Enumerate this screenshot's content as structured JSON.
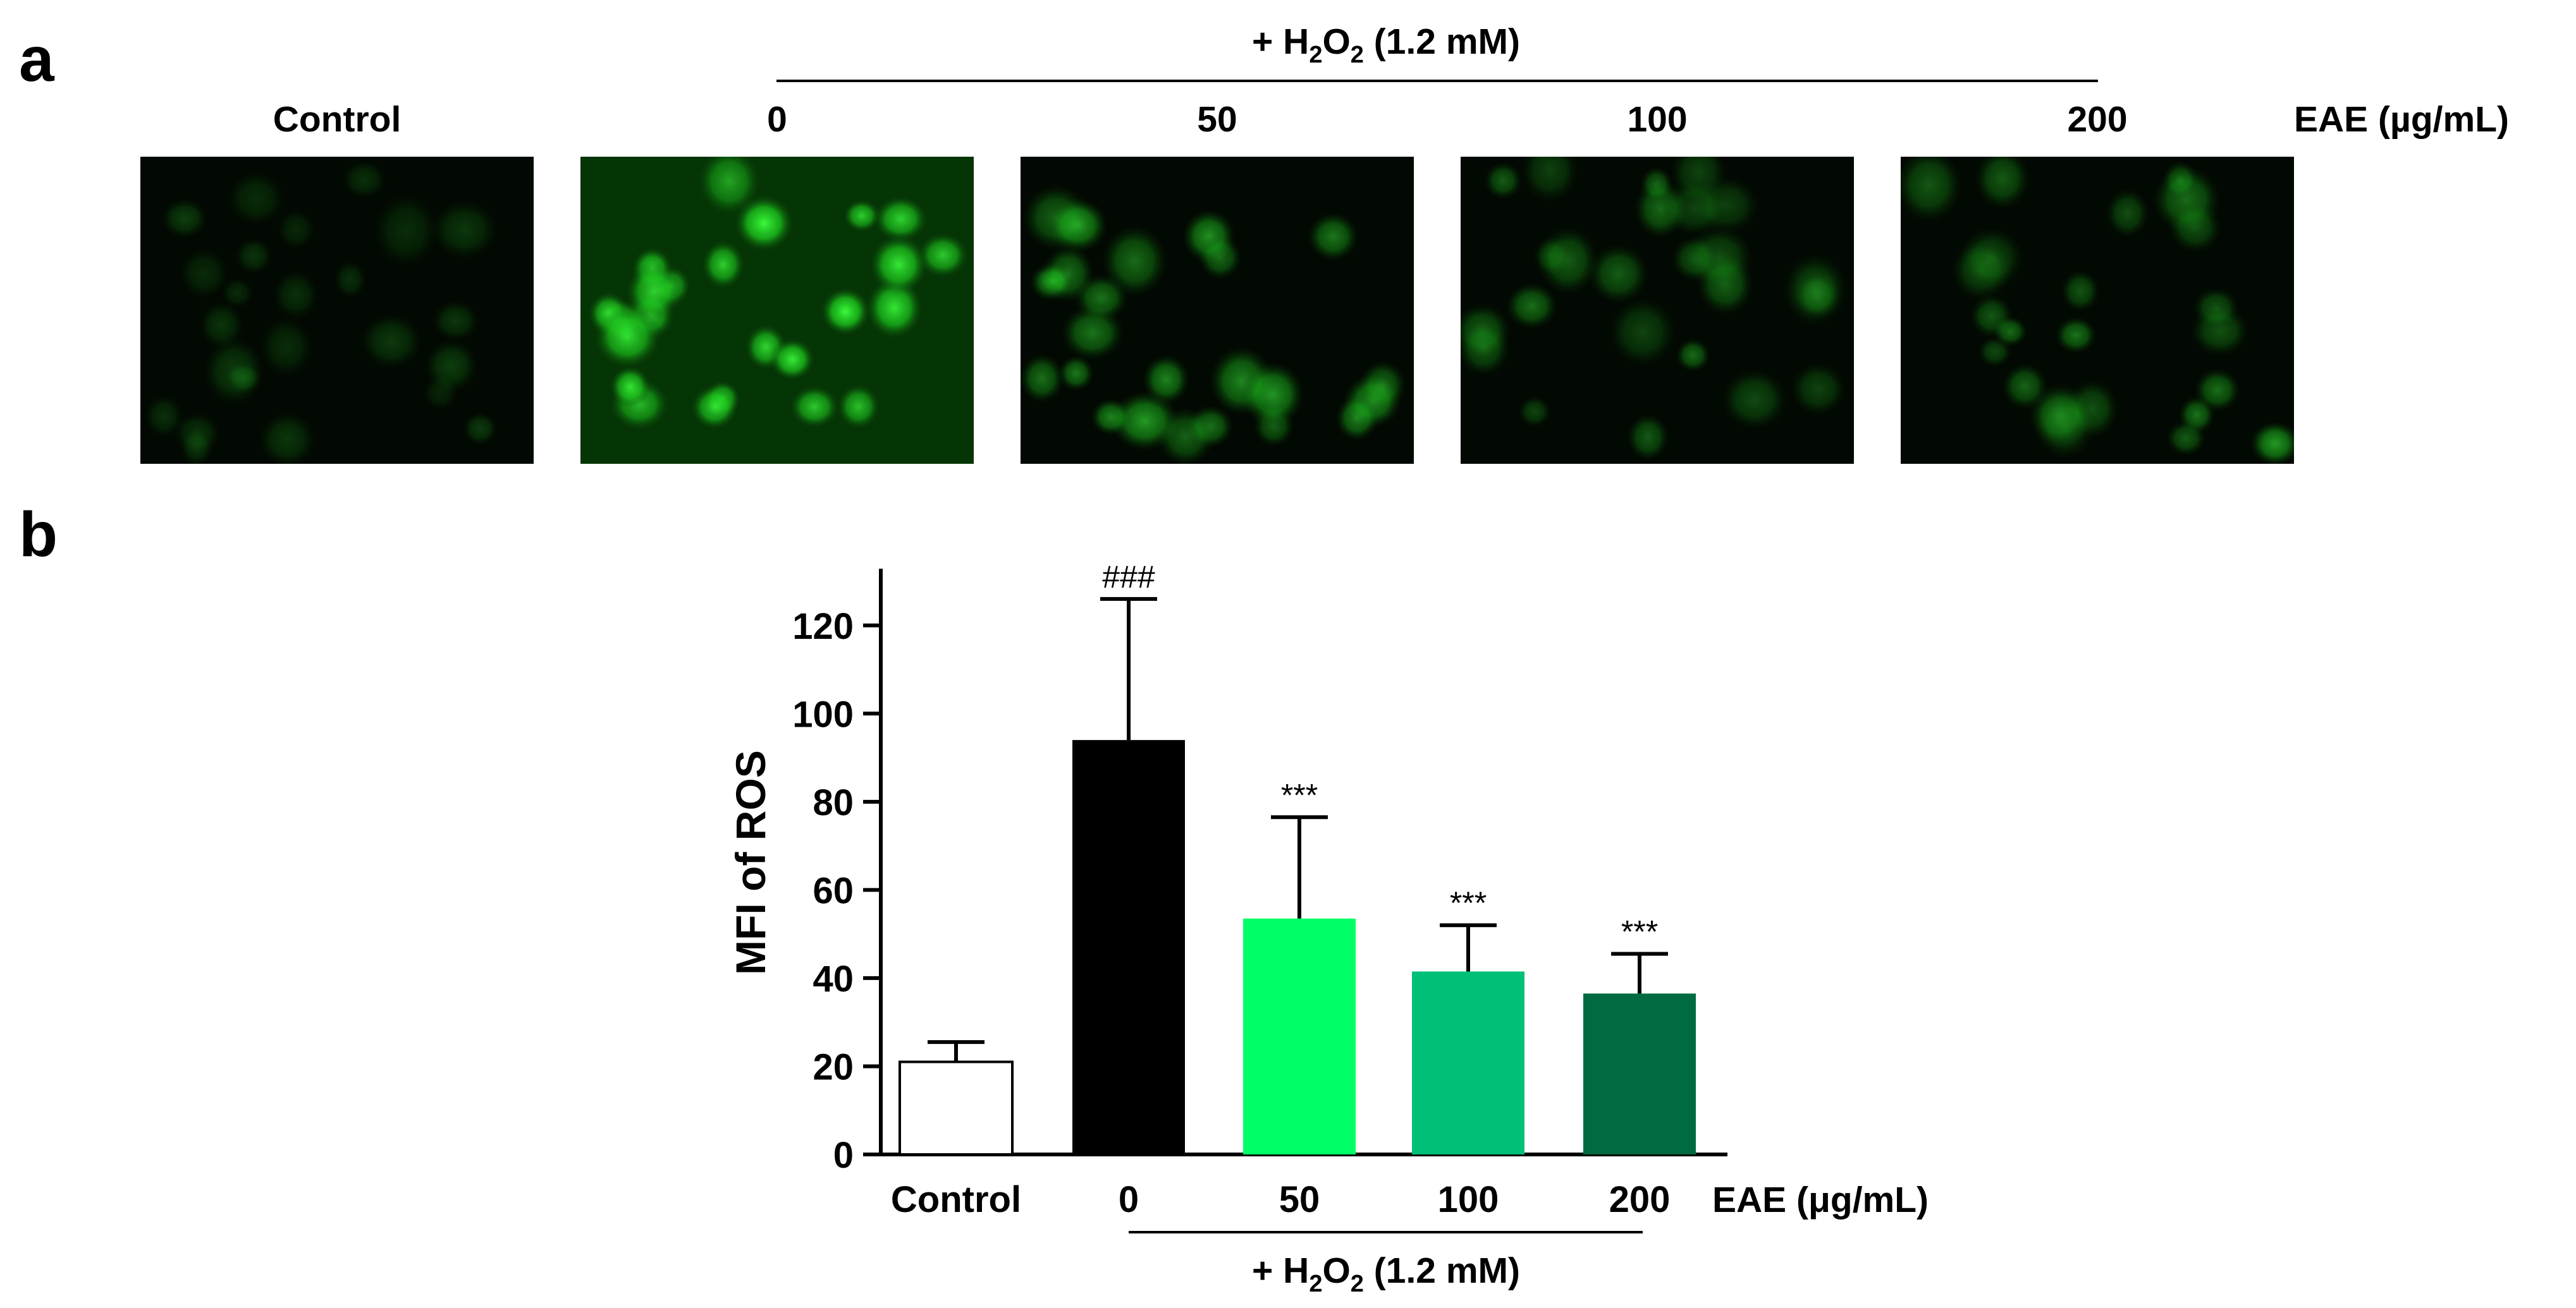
{
  "figure": {
    "panel_a_letter": "a",
    "panel_b_letter": "b",
    "treatment_prefix": "+ H",
    "treatment_sub1": "2",
    "treatment_mid": "O",
    "treatment_sub2": "2",
    "treatment_suffix": " (1.2 mM)",
    "dose_label": "EAE (µg/mL)"
  },
  "micrographs": [
    {
      "label": "Control",
      "intensity": 0.22
    },
    {
      "label": "0",
      "intensity": 1.0
    },
    {
      "label": "50",
      "intensity": 0.62
    },
    {
      "label": "100",
      "intensity": 0.42
    },
    {
      "label": "200",
      "intensity": 0.45
    }
  ],
  "chart_data": {
    "type": "bar",
    "categories": [
      "Control",
      "0",
      "50",
      "100",
      "200"
    ],
    "values": [
      21,
      94,
      53.5,
      41.5,
      36.5
    ],
    "errors": [
      4.5,
      32,
      23,
      10.5,
      9
    ],
    "annotations": [
      "",
      "###",
      "***",
      "***",
      "***"
    ],
    "colors": [
      "#ffffff",
      "#000000",
      "#00ff66",
      "#00c078",
      "#006b40"
    ],
    "ylabel": "MFI of ROS",
    "xlabel": "EAE (μg/mL)",
    "ylim": [
      0,
      130
    ],
    "yticks": [
      0,
      20,
      40,
      60,
      80,
      100,
      120
    ],
    "group_label": "+ H2O2 (1.2 mM)"
  }
}
